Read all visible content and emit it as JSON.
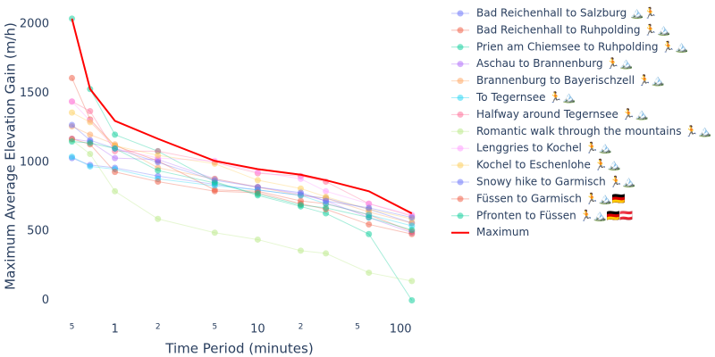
{
  "chart_data": {
    "type": "line",
    "x_scale": "log",
    "xlabel": "Time Period (minutes)",
    "ylabel": "Maximum Average Elevation Gain (m/h)",
    "x": [
      0.5,
      0.67,
      1,
      2,
      5,
      10,
      20,
      30,
      60,
      120
    ],
    "xlim": [
      0.4,
      137
    ],
    "ylim": [
      -100,
      2175
    ],
    "xticks": [
      {
        "value": 0.5,
        "label": "5"
      },
      1,
      2,
      5,
      10,
      {
        "value": 20,
        "label": "2"
      },
      {
        "value": 50,
        "label": "5"
      },
      100
    ],
    "yticks": [
      0,
      500,
      1000,
      1500,
      2000
    ],
    "grid": false,
    "legend": "right",
    "series": [
      {
        "name": "Bad Reichenhall to Salzburg 🏔️🏃",
        "color": "#636efa",
        "values": [
          1030,
          980,
          960,
          900,
          840,
          800,
          760,
          740,
          660,
          560
        ]
      },
      {
        "name": "Bad Reichenhall to Ruhpolding 🏃🏔️",
        "color": "#ef553b",
        "values": [
          1610,
          1310,
          1120,
          1010,
          800,
          790,
          720,
          700,
          620,
          500
        ]
      },
      {
        "name": "Prien am Chiemsee to Ruhpolding 🏃🏔️",
        "color": "#00cc96",
        "values": [
          2040,
          1530,
          1200,
          1080,
          860,
          760,
          680,
          630,
          480,
          0
        ]
      },
      {
        "name": "Aschau to Brannenburg 🏃🏔️",
        "color": "#ab63fa",
        "values": [
          1170,
          1150,
          1030,
          1020,
          880,
          820,
          770,
          720,
          600,
          490
        ]
      },
      {
        "name": "Brannenburg to Bayerischzell 🏃🏔️",
        "color": "#ffa15a",
        "values": [
          1260,
          1200,
          1130,
          960,
          880,
          820,
          760,
          740,
          640,
          560
        ]
      },
      {
        "name": "To Tegernsee 🏃🏔️",
        "color": "#19d3f3",
        "values": [
          1040,
          970,
          950,
          880,
          830,
          800,
          760,
          700,
          620,
          540
        ]
      },
      {
        "name": "Halfway around Tegernsee 🏃🏔️",
        "color": "#ff6692",
        "values": [
          1440,
          1370,
          1080,
          1080,
          1000,
          920,
          900,
          860,
          700,
          610
        ]
      },
      {
        "name": "Romantic walk through the mountains 🏃🏔️",
        "color": "#b6e880",
        "values": [
          1160,
          1060,
          790,
          590,
          490,
          440,
          360,
          340,
          200,
          140
        ]
      },
      {
        "name": "Lenggries to Kochel 🏃🏔️",
        "color": "#ff97ff",
        "values": [
          1440,
          1300,
          1100,
          1030,
          1010,
          930,
          880,
          790,
          700,
          620
        ]
      },
      {
        "name": "Kochel to Eschenlohe 🏃🏔️",
        "color": "#fecb52",
        "values": [
          1360,
          1290,
          1120,
          1050,
          990,
          870,
          810,
          750,
          660,
          590
        ]
      },
      {
        "name": "Snowy hike to Garmisch 🏃🏔️",
        "color": "#636efa",
        "values": [
          1270,
          1160,
          1100,
          1000,
          870,
          820,
          780,
          720,
          670,
          600
        ]
      },
      {
        "name": "Füssen to Garmisch 🏃🏔️🇩🇪",
        "color": "#ef553b",
        "values": [
          1170,
          1130,
          930,
          860,
          790,
          780,
          700,
          660,
          550,
          480
        ]
      },
      {
        "name": "Pfronten to Füssen 🏃🏔️🇩🇪🇦🇹",
        "color": "#00cc96",
        "values": [
          1150,
          1140,
          1100,
          940,
          850,
          770,
          690,
          670,
          600,
          510
        ]
      },
      {
        "name": "Maximum",
        "color": "#ff0000",
        "highlight": true,
        "values": [
          2040,
          1530,
          1300,
          1170,
          1010,
          950,
          910,
          870,
          790,
          630
        ]
      }
    ]
  }
}
